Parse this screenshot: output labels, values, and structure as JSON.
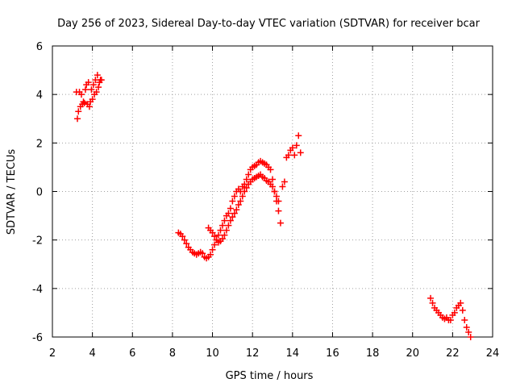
{
  "chart_data": {
    "type": "scatter",
    "title": "Day 256 of 2023, Sidereal Day-to-day VTEC variation (SDTVAR) for receiver bcar",
    "xlabel": "GPS time / hours",
    "ylabel": "SDTVAR / TECUs",
    "xlim": [
      2,
      24
    ],
    "ylim": [
      -6,
      6
    ],
    "xticks": [
      2,
      4,
      6,
      8,
      10,
      12,
      14,
      16,
      18,
      20,
      22,
      24
    ],
    "yticks": [
      -6,
      -4,
      -2,
      0,
      2,
      4,
      6
    ],
    "grid": true,
    "marker": "+",
    "series": [
      {
        "name": "SDTVAR",
        "color": "#ff0000",
        "points": [
          [
            3.2,
            4.1
          ],
          [
            3.25,
            3.0
          ],
          [
            3.3,
            3.3
          ],
          [
            3.35,
            4.1
          ],
          [
            3.4,
            3.5
          ],
          [
            3.45,
            4.0
          ],
          [
            3.5,
            3.6
          ],
          [
            3.55,
            3.7
          ],
          [
            3.6,
            3.65
          ],
          [
            3.65,
            4.2
          ],
          [
            3.7,
            4.4
          ],
          [
            3.75,
            3.6
          ],
          [
            3.8,
            4.5
          ],
          [
            3.85,
            3.5
          ],
          [
            3.9,
            3.7
          ],
          [
            3.95,
            4.2
          ],
          [
            4.0,
            3.8
          ],
          [
            4.05,
            4.4
          ],
          [
            4.1,
            4.0
          ],
          [
            4.15,
            4.6
          ],
          [
            4.2,
            4.1
          ],
          [
            4.25,
            4.8
          ],
          [
            4.3,
            4.3
          ],
          [
            4.35,
            4.5
          ],
          [
            4.4,
            4.6
          ],
          [
            4.45,
            4.6
          ],
          [
            8.3,
            -1.7
          ],
          [
            8.4,
            -1.75
          ],
          [
            8.5,
            -1.85
          ],
          [
            8.6,
            -2.0
          ],
          [
            8.7,
            -2.15
          ],
          [
            8.8,
            -2.3
          ],
          [
            8.9,
            -2.4
          ],
          [
            9.0,
            -2.5
          ],
          [
            9.1,
            -2.55
          ],
          [
            9.2,
            -2.6
          ],
          [
            9.3,
            -2.55
          ],
          [
            9.4,
            -2.5
          ],
          [
            9.5,
            -2.55
          ],
          [
            9.6,
            -2.7
          ],
          [
            9.7,
            -2.75
          ],
          [
            9.8,
            -2.7
          ],
          [
            9.9,
            -2.6
          ],
          [
            10.0,
            -2.4
          ],
          [
            10.1,
            -2.2
          ],
          [
            10.2,
            -2.0
          ],
          [
            10.3,
            -1.8
          ],
          [
            10.4,
            -1.6
          ],
          [
            10.5,
            -1.4
          ],
          [
            10.6,
            -1.2
          ],
          [
            10.7,
            -1.0
          ],
          [
            10.8,
            -0.9
          ],
          [
            10.9,
            -0.7
          ],
          [
            11.0,
            -0.4
          ],
          [
            11.1,
            -0.2
          ],
          [
            11.2,
            0.0
          ],
          [
            11.3,
            0.1
          ],
          [
            11.4,
            0.0
          ],
          [
            11.5,
            0.2
          ],
          [
            11.6,
            0.3
          ],
          [
            11.7,
            0.5
          ],
          [
            11.8,
            0.7
          ],
          [
            11.9,
            0.9
          ],
          [
            12.0,
            1.0
          ],
          [
            12.1,
            1.05
          ],
          [
            12.2,
            1.1
          ],
          [
            12.3,
            1.2
          ],
          [
            12.4,
            1.25
          ],
          [
            12.5,
            1.2
          ],
          [
            12.6,
            1.15
          ],
          [
            12.7,
            1.1
          ],
          [
            12.8,
            1.0
          ],
          [
            12.9,
            0.9
          ],
          [
            13.0,
            0.5
          ],
          [
            13.1,
            0.0
          ],
          [
            13.2,
            -0.4
          ],
          [
            13.3,
            -0.8
          ],
          [
            13.4,
            -1.3
          ],
          [
            13.5,
            0.2
          ],
          [
            13.6,
            0.4
          ],
          [
            13.7,
            1.4
          ],
          [
            13.8,
            1.5
          ],
          [
            13.9,
            1.7
          ],
          [
            14.0,
            1.8
          ],
          [
            14.1,
            1.5
          ],
          [
            14.2,
            1.9
          ],
          [
            14.3,
            2.3
          ],
          [
            14.4,
            1.6
          ],
          [
            9.8,
            -1.5
          ],
          [
            9.9,
            -1.6
          ],
          [
            10.0,
            -1.7
          ],
          [
            10.1,
            -1.85
          ],
          [
            10.2,
            -2.0
          ],
          [
            10.3,
            -2.1
          ],
          [
            10.4,
            -2.05
          ],
          [
            10.5,
            -1.95
          ],
          [
            10.6,
            -1.8
          ],
          [
            10.7,
            -1.6
          ],
          [
            10.8,
            -1.4
          ],
          [
            10.9,
            -1.2
          ],
          [
            11.0,
            -1.05
          ],
          [
            11.1,
            -0.9
          ],
          [
            11.2,
            -0.75
          ],
          [
            11.3,
            -0.55
          ],
          [
            11.4,
            -0.4
          ],
          [
            11.5,
            -0.2
          ],
          [
            11.6,
            0.0
          ],
          [
            11.7,
            0.15
          ],
          [
            11.8,
            0.3
          ],
          [
            11.9,
            0.4
          ],
          [
            12.0,
            0.5
          ],
          [
            12.1,
            0.55
          ],
          [
            12.2,
            0.6
          ],
          [
            12.3,
            0.65
          ],
          [
            12.4,
            0.7
          ],
          [
            12.5,
            0.6
          ],
          [
            12.6,
            0.55
          ],
          [
            12.7,
            0.45
          ],
          [
            12.8,
            0.4
          ],
          [
            12.9,
            0.3
          ],
          [
            13.0,
            0.2
          ],
          [
            13.1,
            0.0
          ],
          [
            13.2,
            -0.2
          ],
          [
            13.3,
            -0.4
          ],
          [
            20.9,
            -4.4
          ],
          [
            21.0,
            -4.6
          ],
          [
            21.1,
            -4.8
          ],
          [
            21.2,
            -4.9
          ],
          [
            21.3,
            -5.0
          ],
          [
            21.4,
            -5.1
          ],
          [
            21.5,
            -5.2
          ],
          [
            21.6,
            -5.25
          ],
          [
            21.7,
            -5.2
          ],
          [
            21.8,
            -5.3
          ],
          [
            21.9,
            -5.3
          ],
          [
            22.0,
            -5.1
          ],
          [
            22.1,
            -5.0
          ],
          [
            22.2,
            -4.8
          ],
          [
            22.3,
            -4.7
          ],
          [
            22.4,
            -4.6
          ],
          [
            22.5,
            -4.9
          ],
          [
            22.6,
            -5.3
          ],
          [
            22.7,
            -5.6
          ],
          [
            22.8,
            -5.8
          ],
          [
            22.9,
            -6.0
          ]
        ]
      }
    ]
  }
}
